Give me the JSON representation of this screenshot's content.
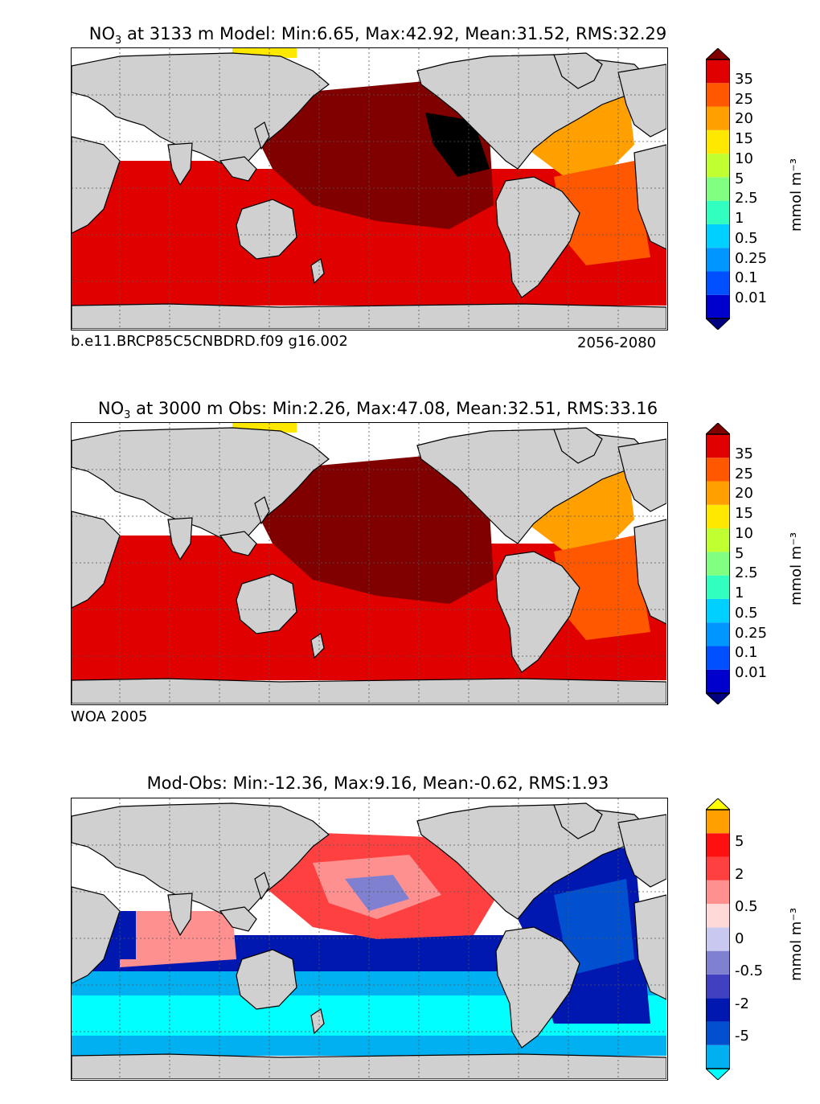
{
  "panels": [
    {
      "title_prefix": "NO",
      "title_sub": "3",
      "title_rest": " at 3133 m Model: Min:6.65, Max:42.92, Mean:31.52, RMS:32.29",
      "caption_left": "b.e11.BRCP85C5CNBDRD.f09 g16.002",
      "caption_right": "2056-2080",
      "colorbar_label": "mmol m⁻³",
      "colorbar_ticks": [
        "0.01",
        "0.1",
        "0.25",
        "0.5",
        "1",
        "2.5",
        "5",
        "10",
        "15",
        "20",
        "25",
        "35"
      ]
    },
    {
      "title_prefix": "NO",
      "title_sub": "3",
      "title_rest": " at 3000 m Obs: Min:2.26, Max:47.08, Mean:32.51, RMS:33.16",
      "caption_left": "WOA 2005",
      "caption_right": "",
      "colorbar_label": "mmol m⁻³",
      "colorbar_ticks": [
        "0.01",
        "0.1",
        "0.25",
        "0.5",
        "1",
        "2.5",
        "5",
        "10",
        "15",
        "20",
        "25",
        "35"
      ]
    },
    {
      "title_prefix": "",
      "title_sub": "",
      "title_rest": "Mod-Obs: Min:-12.36, Max:9.16, Mean:-0.62, RMS:1.93",
      "caption_left": "",
      "caption_right": "",
      "colorbar_label": "mmol m⁻³",
      "colorbar_ticks": [
        "-5",
        "-2",
        "-0.5",
        "0",
        "0.5",
        "2",
        "5"
      ]
    }
  ],
  "chart_data": [
    {
      "type": "heatmap",
      "title": "NO3 at 3133 m Model: Min:6.65, Max:42.92, Mean:31.52, RMS:32.29",
      "stats": {
        "min": 6.65,
        "max": 42.92,
        "mean": 31.52,
        "rms": 32.29
      },
      "depth_m": 3133,
      "units": "mmol m^-3",
      "levels": [
        0.01,
        0.1,
        0.25,
        0.5,
        1,
        2.5,
        5,
        10,
        15,
        20,
        25,
        35
      ],
      "colors": [
        "#000080",
        "#0000cd",
        "#0050ff",
        "#0096ff",
        "#00d0ff",
        "#30ffc0",
        "#80ff80",
        "#c0ff30",
        "#ffe800",
        "#ffa000",
        "#ff5800",
        "#e00000",
        "#800000"
      ],
      "regions": {
        "north_pacific": 35,
        "southern_ocean": 25,
        "indian_ocean": 25,
        "north_atlantic": 15,
        "south_atlantic": 20,
        "ne_pacific_max": 42.92
      },
      "source": "b.e11.BRCP85C5CNBDRD.f09 g16.002",
      "period": "2056-2080",
      "grid": true
    },
    {
      "type": "heatmap",
      "title": "NO3 at 3000 m Obs: Min:2.26, Max:47.08, Mean:32.51, RMS:33.16",
      "stats": {
        "min": 2.26,
        "max": 47.08,
        "mean": 32.51,
        "rms": 33.16
      },
      "depth_m": 3000,
      "units": "mmol m^-3",
      "levels": [
        0.01,
        0.1,
        0.25,
        0.5,
        1,
        2.5,
        5,
        10,
        15,
        20,
        25,
        35
      ],
      "regions": {
        "north_pacific": 35,
        "southern_ocean": 25,
        "indian_ocean": 25,
        "north_atlantic": 15,
        "south_atlantic": 20
      },
      "source": "WOA 2005",
      "grid": true
    },
    {
      "type": "heatmap",
      "title": "Mod-Obs: Min:-12.36, Max:9.16, Mean:-0.62, RMS:1.93",
      "stats": {
        "min": -12.36,
        "max": 9.16,
        "mean": -0.62,
        "rms": 1.93
      },
      "units": "mmol m^-3",
      "levels": [
        -5,
        -2,
        -0.5,
        0,
        0.5,
        2,
        5
      ],
      "colors": [
        "#00ffff",
        "#00b0f0",
        "#0050d0",
        "#0018b0",
        "#4040c0",
        "#8080d0",
        "#c8c8f0",
        "#ffd8d8",
        "#ff9090",
        "#ff4040",
        "#ff1010",
        "#ffa000",
        "#ffff00"
      ],
      "regions": {
        "north_pacific": 0.5,
        "southern_ocean": -2,
        "atlantic": -2,
        "indian_ocean": 0.5
      },
      "grid": true
    }
  ],
  "colors": {
    "land": "#d0d0d0",
    "missing": "#ffffff",
    "grid": "#555555"
  }
}
